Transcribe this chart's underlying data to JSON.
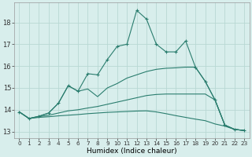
{
  "x": [
    0,
    1,
    2,
    3,
    4,
    5,
    6,
    7,
    8,
    9,
    10,
    11,
    12,
    13,
    14,
    15,
    16,
    17,
    18,
    19,
    20,
    21,
    22,
    23
  ],
  "line_main": [
    13.9,
    13.6,
    13.7,
    13.85,
    14.3,
    15.1,
    14.85,
    15.65,
    15.6,
    16.3,
    16.9,
    17.0,
    18.55,
    18.15,
    17.0,
    16.65,
    16.65,
    17.15,
    15.95,
    15.3,
    14.45,
    13.3,
    13.1,
    13.05
  ],
  "line_upper": [
    13.9,
    13.6,
    13.7,
    13.85,
    14.3,
    15.1,
    14.85,
    14.95,
    14.6,
    15.0,
    15.2,
    15.45,
    15.6,
    15.75,
    15.85,
    15.9,
    15.92,
    15.95,
    15.95,
    15.3,
    14.45,
    13.3,
    13.1,
    13.05
  ],
  "line_mid": [
    13.9,
    13.6,
    13.68,
    13.75,
    13.85,
    13.95,
    14.0,
    14.08,
    14.15,
    14.25,
    14.35,
    14.45,
    14.55,
    14.65,
    14.7,
    14.72,
    14.72,
    14.72,
    14.72,
    14.72,
    14.45,
    13.3,
    13.1,
    13.05
  ],
  "line_lower": [
    13.9,
    13.6,
    13.65,
    13.68,
    13.72,
    13.75,
    13.78,
    13.82,
    13.85,
    13.88,
    13.9,
    13.92,
    13.94,
    13.95,
    13.9,
    13.82,
    13.73,
    13.65,
    13.57,
    13.5,
    13.35,
    13.25,
    13.1,
    13.05
  ],
  "line_color": "#2a7d6e",
  "bg_color": "#d8eeec",
  "grid_color": "#b8d8d4",
  "xlabel": "Humidex (Indice chaleur)",
  "ylabel_ticks": [
    13,
    14,
    15,
    16,
    17,
    18
  ],
  "xlim": [
    -0.5,
    23.5
  ],
  "ylim": [
    12.7,
    18.9
  ]
}
